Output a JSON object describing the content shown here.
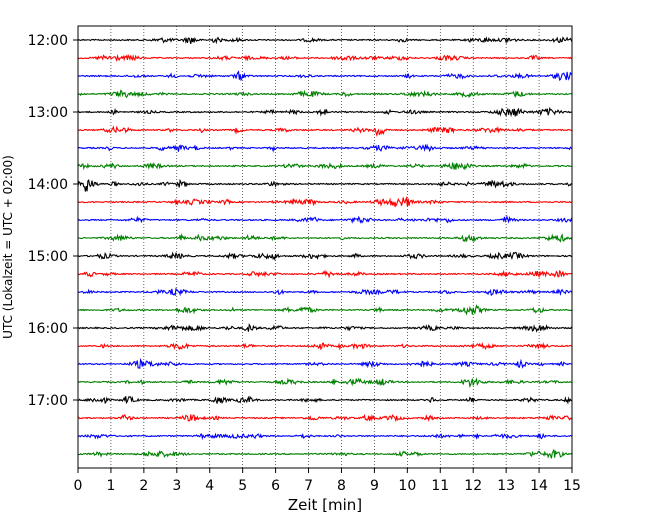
{
  "chart_data": {
    "type": "line",
    "title": "",
    "xlabel": "Zeit  [min]",
    "ylabel": "UTC (Lokalzeit = UTC + 02:00)",
    "xlim": [
      0,
      15
    ],
    "xticks": [
      0,
      1,
      2,
      3,
      4,
      5,
      6,
      7,
      8,
      9,
      10,
      11,
      12,
      13,
      14,
      15
    ],
    "grid": "vertical dotted",
    "line_colors": [
      "#000000",
      "#ff0000",
      "#0000ff",
      "#008000"
    ],
    "row_start": "12:00",
    "row_interval_minutes": 15,
    "rows": 24,
    "yticks": [
      {
        "label": "12:00",
        "row": 0
      },
      {
        "label": "13:00",
        "row": 4
      },
      {
        "label": "14:00",
        "row": 8
      },
      {
        "label": "15:00",
        "row": 12
      },
      {
        "label": "16:00",
        "row": 16
      },
      {
        "label": "17:00",
        "row": 20
      }
    ],
    "notable_events": [
      {
        "row": 5,
        "minute": 9.15,
        "description": "stronger burst"
      },
      {
        "row": 8,
        "minute": 0.25,
        "description": "burst"
      }
    ]
  }
}
